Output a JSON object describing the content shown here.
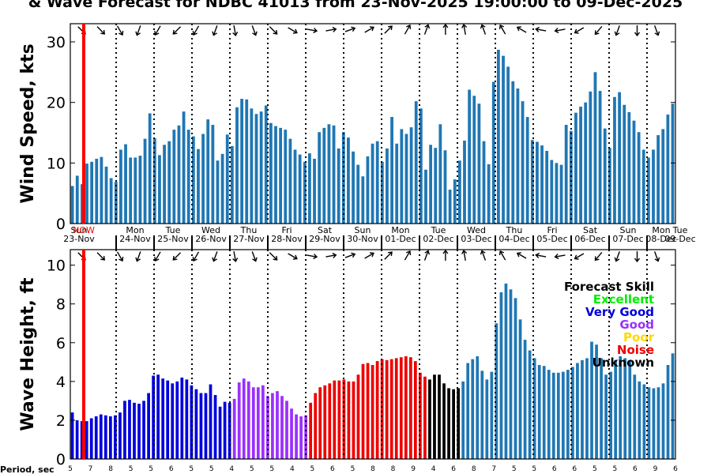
{
  "title": "& Wave Forecast for NDBC 41013 from 23-Nov-2025 19:00:00 to 09-Dec-2025",
  "now_label": "NOW",
  "period_label": "Period, sec",
  "legend": {
    "title": "Forecast Skill",
    "items": [
      {
        "label": "Excellent",
        "color": "#00ee00"
      },
      {
        "label": "Very Good",
        "color": "#0000dd"
      },
      {
        "label": "Good",
        "color": "#9b30ff"
      },
      {
        "label": "Poor",
        "color": "#ffd700"
      },
      {
        "label": "Noise",
        "color": "#ee0000"
      },
      {
        "label": "Unknown",
        "color": "#000000"
      }
    ]
  },
  "colors": {
    "bar": "#1f77b4",
    "now": "#ff0000"
  },
  "days": [
    {
      "dow": "Sun",
      "date": "23-Nov"
    },
    {
      "dow": "Mon",
      "date": "24-Nov"
    },
    {
      "dow": "Tue",
      "date": "25-Nov"
    },
    {
      "dow": "Wed",
      "date": "26-Nov"
    },
    {
      "dow": "Thu",
      "date": "27-Nov"
    },
    {
      "dow": "Fri",
      "date": "28-Nov"
    },
    {
      "dow": "Sat",
      "date": "29-Nov"
    },
    {
      "dow": "Sun",
      "date": "30-Nov"
    },
    {
      "dow": "Mon",
      "date": "01-Dec"
    },
    {
      "dow": "Tue",
      "date": "02-Dec"
    },
    {
      "dow": "Wed",
      "date": "03-Dec"
    },
    {
      "dow": "Thu",
      "date": "04-Dec"
    },
    {
      "dow": "Fri",
      "date": "05-Dec"
    },
    {
      "dow": "Sat",
      "date": "06-Dec"
    },
    {
      "dow": "Sun",
      "date": "07-Dec"
    },
    {
      "dow": "Mon",
      "date": "08-Dec"
    },
    {
      "dow": "Tue",
      "date": "09-Dec"
    }
  ],
  "periods": [
    "5",
    "7",
    "8",
    "5",
    "5",
    "6",
    "5",
    "5",
    "4",
    "5",
    "5",
    "4",
    "5",
    "6",
    "5",
    "8",
    "8",
    "9",
    "4",
    "6",
    "8",
    "7",
    "5",
    "5",
    "6",
    "6",
    "5",
    "5",
    "6",
    "9",
    "6"
  ],
  "chart_data": [
    {
      "type": "bar",
      "ylabel": "Wind Speed, kts",
      "ylim": [
        0,
        33
      ],
      "yticks": [
        0,
        10,
        20,
        30
      ],
      "values": [
        6.2,
        7.9,
        6.5,
        9.9,
        10.2,
        10.7,
        11.0,
        9.4,
        7.5,
        6.9,
        12.2,
        13.1,
        10.9,
        10.9,
        11.2,
        14.0,
        18.2,
        14.1,
        11.3,
        13.0,
        13.6,
        15.5,
        16.2,
        18.5,
        15.5,
        14.4,
        12.3,
        14.8,
        17.2,
        16.3,
        10.4,
        11.5,
        14.7,
        12.8,
        19.2,
        20.6,
        20.5,
        19.0,
        18.1,
        18.5,
        19.5,
        16.6,
        16.1,
        15.8,
        15.5,
        14.0,
        12.2,
        11.4,
        10.2,
        11.6,
        10.7,
        15.1,
        15.8,
        16.4,
        16.2,
        12.4,
        15.1,
        14.2,
        11.9,
        9.7,
        7.8,
        11.1,
        13.2,
        13.6,
        10.2,
        12.4,
        17.6,
        13.2,
        15.6,
        14.8,
        15.9,
        20.2,
        19.0,
        8.9,
        13.0,
        12.5,
        16.4,
        12.1,
        5.6,
        7.3,
        10.4,
        13.7,
        22.1,
        21.1,
        19.8,
        13.6,
        9.8,
        23.4,
        28.7,
        27.7,
        25.9,
        23.5,
        22.3,
        20.2,
        17.6,
        13.8,
        13.5,
        12.9,
        12.0,
        10.5,
        10.0,
        9.7,
        16.3,
        15.3,
        18.3,
        19.3,
        20.0,
        21.8,
        25.0,
        21.9,
        15.7,
        12.5,
        20.9,
        21.7,
        19.6,
        18.4,
        17.0,
        15.1,
        12.2,
        10.9,
        12.2,
        14.6,
        15.6,
        18.0,
        19.8
      ]
    },
    {
      "type": "bar",
      "ylabel": "Wave Height, ft",
      "ylim": [
        0,
        10.8
      ],
      "yticks": [
        0,
        2,
        4,
        6,
        8,
        10
      ],
      "values": [
        2.4,
        2.0,
        1.95,
        1.95,
        2.1,
        2.2,
        2.3,
        2.25,
        2.2,
        2.25,
        2.4,
        3.0,
        3.05,
        2.9,
        2.85,
        3.0,
        3.4,
        4.3,
        4.35,
        4.15,
        4.05,
        3.9,
        4.0,
        4.2,
        4.1,
        3.8,
        3.6,
        3.4,
        3.4,
        3.85,
        3.3,
        2.7,
        2.95,
        2.9,
        3.1,
        3.95,
        4.15,
        4.0,
        3.7,
        3.7,
        3.8,
        3.25,
        3.4,
        3.5,
        3.25,
        3.0,
        2.6,
        2.3,
        2.2,
        2.25,
        2.9,
        3.4,
        3.7,
        3.8,
        3.9,
        4.05,
        4.05,
        4.1,
        4.0,
        4.0,
        4.35,
        4.9,
        4.95,
        4.85,
        5.05,
        5.15,
        5.1,
        5.15,
        5.2,
        5.25,
        5.3,
        5.25,
        5.05,
        4.45,
        4.25,
        4.1,
        4.35,
        4.35,
        3.9,
        3.65,
        3.6,
        3.65,
        4.0,
        4.95,
        5.15,
        5.3,
        4.55,
        4.1,
        4.5,
        7.0,
        8.6,
        9.05,
        8.75,
        8.3,
        7.2,
        6.15,
        5.6,
        5.2,
        4.85,
        4.8,
        4.6,
        4.45,
        4.45,
        4.5,
        4.6,
        4.75,
        4.95,
        5.1,
        5.2,
        6.05,
        5.9,
        5.2,
        4.35,
        4.5,
        5.1,
        5.3,
        5.2,
        5.1,
        4.35,
        4.0,
        3.85,
        3.7,
        3.65,
        3.7,
        3.9,
        4.85,
        5.45
      ]
    }
  ]
}
